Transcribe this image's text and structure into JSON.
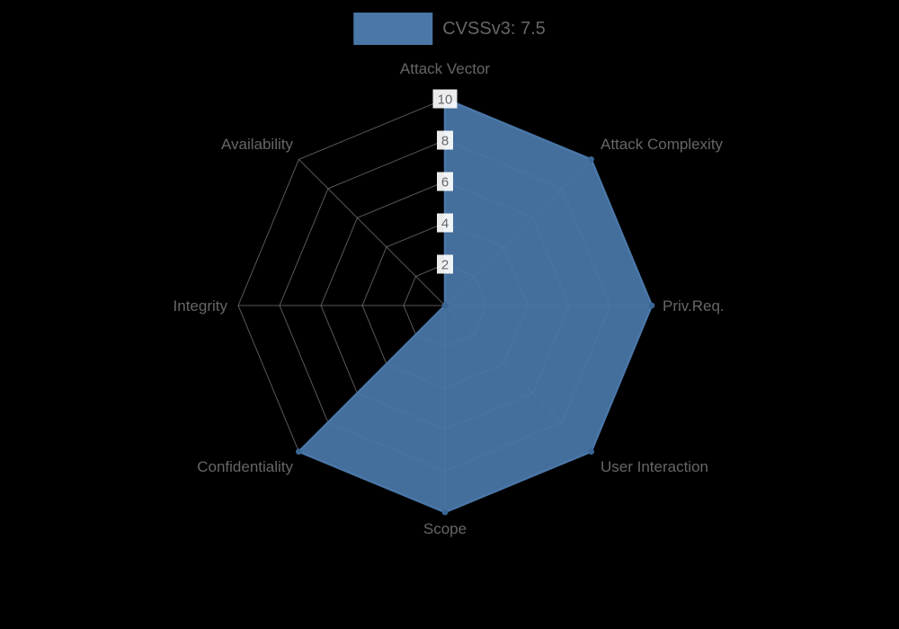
{
  "legend": {
    "label": "CVSSv3: 7.5",
    "position": "top"
  },
  "colors": {
    "background": "#000000",
    "series_fill": "#4a77a8",
    "series_border": "#4a77a8",
    "point_color": "#3a6694",
    "grid": "#6e6e6e",
    "axis_label": "#666666",
    "tick_text": "#666666",
    "tick_backdrop": "#ffffff"
  },
  "chart_data": {
    "type": "radar",
    "title": "",
    "categories": [
      "Attack Vector",
      "Attack Complexity",
      "Priv.Req.",
      "User Interaction",
      "Scope",
      "Confidentiality",
      "Integrity",
      "Availability"
    ],
    "series": [
      {
        "name": "CVSSv3: 7.5",
        "values": [
          10,
          10,
          10,
          10,
          10,
          10,
          0,
          0
        ]
      }
    ],
    "rlim": [
      0,
      10
    ],
    "ticks": [
      2,
      4,
      6,
      8,
      10
    ],
    "grid": true,
    "grid_shape": "polygon",
    "legend_position": "top"
  }
}
